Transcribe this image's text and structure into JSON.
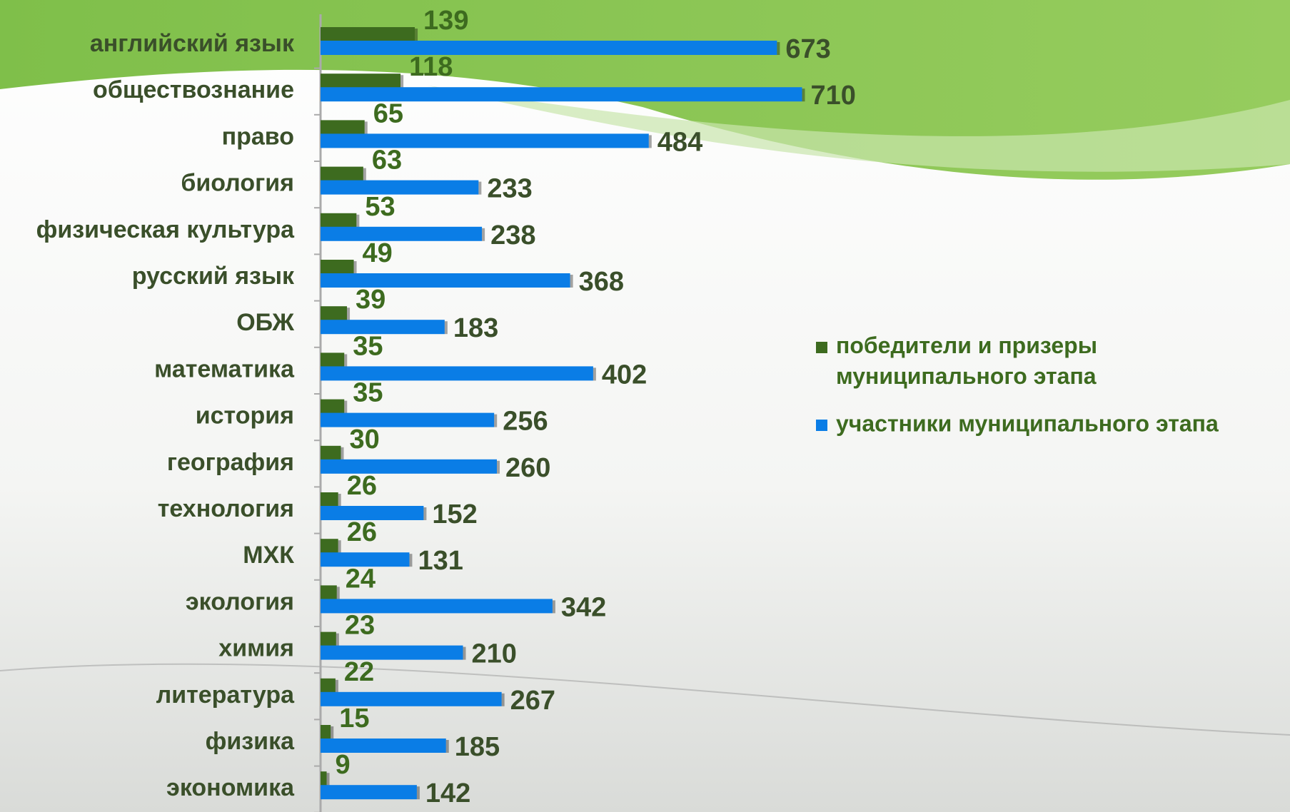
{
  "chart_data": {
    "type": "bar",
    "orientation": "horizontal",
    "categories": [
      "английский язык",
      "обществознание",
      "право",
      "биология",
      "физическая культура",
      "русский язык",
      "ОБЖ",
      "математика",
      "история",
      "география",
      "технология",
      "МХК",
      "экология",
      "химия",
      "литература",
      "физика",
      "экономика"
    ],
    "series": [
      {
        "name": "победители и призеры муниципального этапа",
        "color": "#3d6b1f",
        "values": [
          139,
          118,
          65,
          63,
          53,
          49,
          39,
          35,
          35,
          30,
          26,
          26,
          24,
          23,
          22,
          15,
          9
        ]
      },
      {
        "name": "участники муниципального этапа",
        "color": "#0a7de6",
        "values": [
          673,
          710,
          484,
          233,
          238,
          368,
          183,
          402,
          256,
          260,
          152,
          131,
          342,
          210,
          267,
          185,
          142
        ]
      }
    ],
    "legend": "right"
  }
}
